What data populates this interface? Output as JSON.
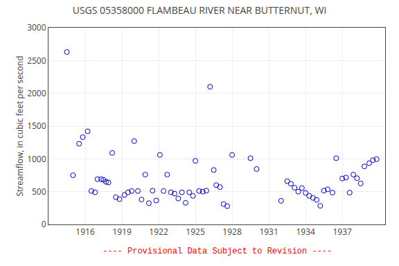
{
  "chart_data": {
    "type": "scatter",
    "title": "USGS 05358000 FLAMBEAU RIVER NEAR BUTTERNUT, WI",
    "ylabel": "Streamflow, in cubic feet per second",
    "annotations": [
      {
        "text": "---- Provisional Data Subject to Revision ----",
        "color": "#ff0000"
      }
    ],
    "color": "#0000cc",
    "marker": "circle-open",
    "grid": true,
    "xlim": [
      1913.0,
      1940.5
    ],
    "ylim": [
      0,
      3000
    ],
    "xticks": [
      1916,
      1919,
      1922,
      1925,
      1928,
      1931,
      1934,
      1937
    ],
    "yticks": [
      0,
      500,
      1000,
      1500,
      2000,
      2500,
      3000
    ],
    "x": [
      1914.5,
      1915.0,
      1915.5,
      1915.8,
      1916.2,
      1916.5,
      1916.8,
      1917.0,
      1917.3,
      1917.5,
      1917.7,
      1917.9,
      1918.2,
      1918.5,
      1918.8,
      1919.2,
      1919.5,
      1919.8,
      1920.0,
      1920.3,
      1920.6,
      1920.9,
      1921.2,
      1921.5,
      1921.8,
      1922.1,
      1922.4,
      1922.7,
      1923.0,
      1923.3,
      1923.6,
      1923.9,
      1924.2,
      1924.5,
      1924.8,
      1925.0,
      1925.3,
      1925.6,
      1925.9,
      1926.2,
      1926.5,
      1926.7,
      1927.0,
      1927.3,
      1927.6,
      1928.0,
      1929.5,
      1930.0,
      1932.0,
      1932.5,
      1932.8,
      1933.1,
      1933.4,
      1933.7,
      1934.0,
      1934.3,
      1934.6,
      1934.9,
      1935.2,
      1935.5,
      1935.8,
      1936.2,
      1936.5,
      1937.0,
      1937.3,
      1937.6,
      1937.9,
      1938.2,
      1938.5,
      1938.8,
      1939.2,
      1939.5,
      1939.8
    ],
    "values": [
      2630,
      750,
      1230,
      1330,
      1420,
      510,
      490,
      690,
      690,
      680,
      650,
      640,
      1090,
      415,
      385,
      450,
      490,
      510,
      1270,
      510,
      380,
      760,
      325,
      515,
      365,
      1060,
      510,
      760,
      490,
      470,
      395,
      490,
      330,
      490,
      435,
      970,
      510,
      500,
      515,
      2100,
      830,
      600,
      570,
      310,
      280,
      1060,
      1010,
      845,
      360,
      660,
      620,
      560,
      500,
      555,
      480,
      435,
      405,
      375,
      285,
      515,
      535,
      485,
      1010,
      700,
      715,
      485,
      760,
      705,
      625,
      885,
      935,
      980,
      995
    ]
  }
}
